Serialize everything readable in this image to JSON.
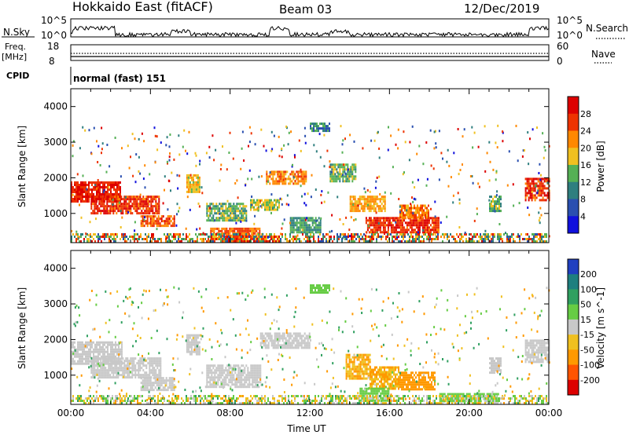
{
  "header": {
    "station": "Hokkaido East (fitACF)",
    "beam": "Beam 03",
    "date": "12/Dec/2019"
  },
  "aux_labels": {
    "nsky": "N.Sky",
    "nsearch": "N.Search",
    "freq": "Freq.",
    "mhz": "[MHz]",
    "nave": "Nave",
    "cpid": "CPID",
    "cpid_value": "normal (fast) 151",
    "nsky_ticks": [
      "10^5",
      "10^0"
    ],
    "freq_ticks": [
      "18",
      "8"
    ],
    "nave_ticks": [
      "60",
      "0"
    ]
  },
  "colors": {
    "power": [
      "#1010dd",
      "#2a4fb0",
      "#2f7f7f",
      "#55b055",
      "#f0c020",
      "#ff8800",
      "#ee3300",
      "#dd0000"
    ],
    "velocity": [
      "#2040c0",
      "#1e7f7f",
      "#30a060",
      "#66cc44",
      "#c8c8c8",
      "#f0c020",
      "#ff9900",
      "#ff5500",
      "#dd0000"
    ]
  },
  "chart_data": [
    {
      "type": "heatmap",
      "name": "power",
      "xlabel": "Time UT",
      "ylabel": "Slant Range [km]",
      "x_ticks": [
        "00:00",
        "04:00",
        "08:00",
        "12:00",
        "16:00",
        "20:00",
        "00:00"
      ],
      "xlim": [
        0,
        24
      ],
      "ylim": [
        180,
        4500
      ],
      "y_ticks": [
        1000,
        2000,
        3000,
        4000
      ],
      "colorbar": {
        "label": "Power [dB]",
        "ticks": [
          4,
          8,
          12,
          16,
          20,
          24,
          28
        ],
        "range": [
          0,
          32
        ]
      },
      "regions": [
        {
          "t": [
            0.0,
            2.5
          ],
          "r": [
            1350,
            1900
          ],
          "v": 28
        },
        {
          "t": [
            1.0,
            4.4
          ],
          "r": [
            1000,
            1500
          ],
          "v": 27
        },
        {
          "t": [
            3.5,
            5.2
          ],
          "r": [
            650,
            950
          ],
          "v": 25
        },
        {
          "t": [
            5.8,
            6.5
          ],
          "r": [
            1600,
            2100
          ],
          "v": 18
        },
        {
          "t": [
            6.8,
            8.8
          ],
          "r": [
            800,
            1300
          ],
          "v": 14
        },
        {
          "t": [
            7.0,
            9.5
          ],
          "r": [
            300,
            600
          ],
          "v": 24
        },
        {
          "t": [
            7.5,
            10.5
          ],
          "r": [
            200,
            380
          ],
          "v": 26
        },
        {
          "t": [
            9.0,
            10.5
          ],
          "r": [
            1100,
            1400
          ],
          "v": 16
        },
        {
          "t": [
            9.8,
            11.8
          ],
          "r": [
            1850,
            2200
          ],
          "v": 22
        },
        {
          "t": [
            11.0,
            12.5
          ],
          "r": [
            500,
            900
          ],
          "v": 12
        },
        {
          "t": [
            12.0,
            13.0
          ],
          "r": [
            3350,
            3550
          ],
          "v": 10
        },
        {
          "t": [
            13.0,
            14.3
          ],
          "r": [
            1900,
            2400
          ],
          "v": 14
        },
        {
          "t": [
            14.0,
            15.8
          ],
          "r": [
            1100,
            1500
          ],
          "v": 20
        },
        {
          "t": [
            14.8,
            18.5
          ],
          "r": [
            500,
            900
          ],
          "v": 27
        },
        {
          "t": [
            16.5,
            18.0
          ],
          "r": [
            900,
            1250
          ],
          "v": 23
        },
        {
          "t": [
            21.0,
            21.6
          ],
          "r": [
            1100,
            1500
          ],
          "v": 14
        },
        {
          "t": [
            22.8,
            24.0
          ],
          "r": [
            1400,
            2000
          ],
          "v": 27
        }
      ]
    },
    {
      "type": "heatmap",
      "name": "velocity",
      "xlabel": "Time UT",
      "ylabel": "Slant Range [km]",
      "x_ticks": [
        "00:00",
        "04:00",
        "08:00",
        "12:00",
        "16:00",
        "20:00",
        "00:00"
      ],
      "xlim": [
        0,
        24
      ],
      "ylim": [
        180,
        4500
      ],
      "y_ticks": [
        1000,
        2000,
        3000,
        4000
      ],
      "colorbar": {
        "label": "Velocity [m s^-1]",
        "ticks": [
          200,
          100,
          50,
          15,
          -15,
          -50,
          -100,
          -200
        ]
      },
      "regions": [
        {
          "t": [
            0.0,
            2.6
          ],
          "r": [
            1300,
            1950
          ],
          "v": 0
        },
        {
          "t": [
            1.0,
            4.5
          ],
          "r": [
            950,
            1500
          ],
          "v": 0
        },
        {
          "t": [
            3.5,
            5.2
          ],
          "r": [
            600,
            950
          ],
          "v": 0
        },
        {
          "t": [
            5.8,
            6.5
          ],
          "r": [
            1600,
            2150
          ],
          "v": 0
        },
        {
          "t": [
            6.8,
            9.5
          ],
          "r": [
            700,
            1300
          ],
          "v": 0
        },
        {
          "t": [
            9.5,
            12.0
          ],
          "r": [
            1750,
            2200
          ],
          "v": 0
        },
        {
          "t": [
            12.0,
            13.0
          ],
          "r": [
            3350,
            3550
          ],
          "v": 30
        },
        {
          "t": [
            13.8,
            15.0
          ],
          "r": [
            900,
            1600
          ],
          "v": -50
        },
        {
          "t": [
            15.0,
            16.5
          ],
          "r": [
            600,
            1250
          ],
          "v": -50
        },
        {
          "t": [
            16.5,
            18.3
          ],
          "r": [
            600,
            1100
          ],
          "v": -60
        },
        {
          "t": [
            14.5,
            16.0
          ],
          "r": [
            300,
            650
          ],
          "v": 30
        },
        {
          "t": [
            18.5,
            21.5
          ],
          "r": [
            300,
            500
          ],
          "v": 30
        },
        {
          "t": [
            21.0,
            21.6
          ],
          "r": [
            1100,
            1500
          ],
          "v": 0
        },
        {
          "t": [
            22.8,
            24.0
          ],
          "r": [
            1400,
            2000
          ],
          "v": 0
        }
      ]
    }
  ]
}
